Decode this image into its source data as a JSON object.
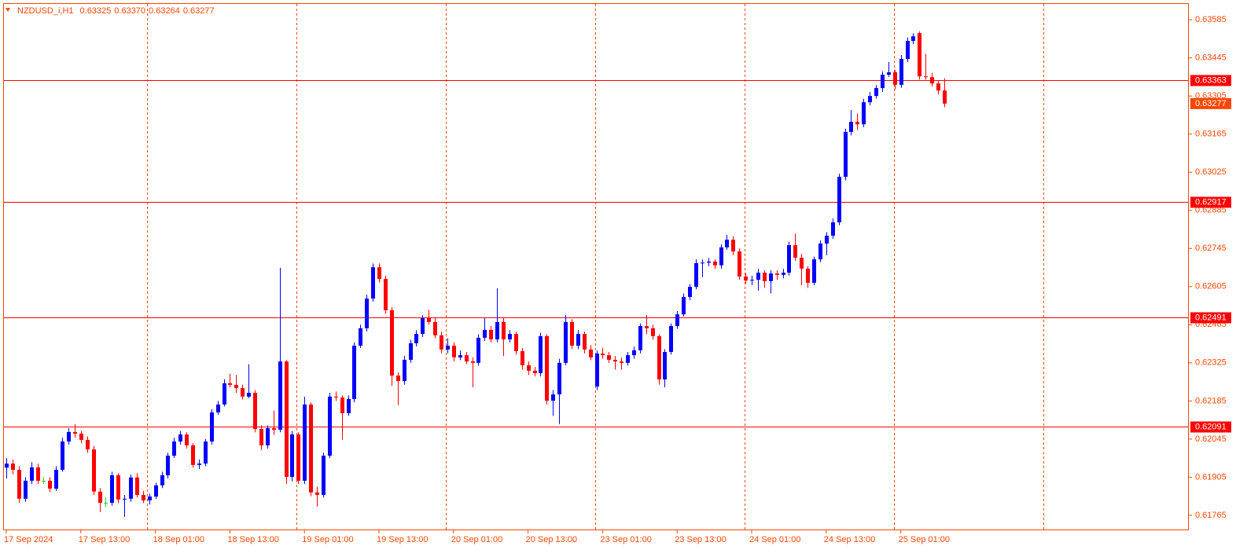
{
  "chart_data": {
    "type": "candlestick",
    "header": {
      "symbol": "NZDUSD_i,H1",
      "values": [
        "0.63325",
        "0.63370",
        "0.63264",
        "0.63277"
      ]
    },
    "up_color": "#0000ff",
    "down_color": "#ff0000",
    "doji_color": "#32cd32",
    "axis_color": "#ff4500",
    "level_color": "#ff0000",
    "levels": [
      0.63363,
      0.62917,
      0.62491,
      0.62091
    ],
    "ylim": [
      0.6171,
      0.63643
    ],
    "yticks": [
      0.63585,
      0.63445,
      0.63305,
      0.63165,
      0.63025,
      0.62885,
      0.62745,
      0.62605,
      0.62465,
      0.62325,
      0.62185,
      0.62045,
      0.61905,
      0.61765
    ],
    "xticks": [
      {
        "value": 0,
        "label": "17 Sep 2024"
      },
      {
        "value": 12,
        "label": "17 Sep 13:00"
      },
      {
        "value": 24,
        "label": "18 Sep 01:00"
      },
      {
        "value": 36,
        "label": "18 Sep 13:00"
      },
      {
        "value": 48,
        "label": "19 Sep 01:00"
      },
      {
        "value": 60,
        "label": "19 Sep 13:00"
      },
      {
        "value": 72,
        "label": "20 Sep 01:00"
      },
      {
        "value": 84,
        "label": "20 Sep 13:00"
      },
      {
        "value": 96,
        "label": "23 Sep 01:00"
      },
      {
        "value": 108,
        "label": "23 Sep 13:00"
      },
      {
        "value": 120,
        "label": "24 Sep 01:00"
      },
      {
        "value": 132,
        "label": "24 Sep 13:00"
      },
      {
        "value": 144,
        "label": "25 Sep 01:00"
      }
    ],
    "open": [
      0.6194,
      0.61955,
      0.61932,
      0.61826,
      0.61892,
      0.61941,
      0.61892,
      0.61892,
      0.61863,
      0.61932,
      0.62036,
      0.62071,
      0.62065,
      0.62042,
      0.62007,
      0.61852,
      0.61811,
      0.61811,
      0.61912,
      0.61823,
      0.61826,
      0.61904,
      0.6184,
      0.6182,
      0.61834,
      0.61875,
      0.61912,
      0.61984,
      0.62036,
      0.62062,
      0.62022,
      0.6195,
      0.61955,
      0.62036,
      0.62143,
      0.62172,
      0.6225,
      0.62244,
      0.62232,
      0.62201,
      0.62215,
      0.62082,
      0.62022,
      0.62085,
      0.62079,
      0.6233,
      0.61906,
      0.62062,
      0.61892,
      0.62172,
      0.61849,
      0.6184,
      0.61984,
      0.62201,
      0.62198,
      0.6214,
      0.62192,
      0.62388,
      0.62452,
      0.62561,
      0.62676,
      0.62633,
      0.62518,
      0.62278,
      0.62258,
      0.62336,
      0.62397,
      0.62431,
      0.62489,
      0.62475,
      0.62426,
      0.62374,
      0.62388,
      0.62345,
      0.62353,
      0.6233,
      0.62325,
      0.62417,
      0.62446,
      0.62411,
      0.62475,
      0.62411,
      0.62431,
      0.62368,
      0.62316,
      0.62296,
      0.62287,
      0.62423,
      0.62186,
      0.62209,
      0.62325,
      0.62475,
      0.62388,
      0.62431,
      0.62374,
      0.62238,
      0.62359,
      0.62353,
      0.62336,
      0.6233,
      0.62325,
      0.62353,
      0.62371,
      0.6246,
      0.62452,
      0.62423,
      0.62264,
      0.62365,
      0.6246,
      0.62503,
      0.62567,
      0.62604,
      0.62691,
      0.62693,
      0.62697,
      0.62683,
      0.62749,
      0.62777,
      0.62734,
      0.62642,
      0.62627,
      0.6263,
      0.62656,
      0.62625,
      0.62653,
      0.62648,
      0.62656,
      0.62757,
      0.62711,
      0.62671,
      0.62619,
      0.62705,
      0.62763,
      0.62792,
      0.62841,
      0.63008,
      0.63173,
      0.6321,
      0.63201,
      0.63282,
      0.63305,
      0.63334,
      0.63383,
      0.63392,
      0.63346,
      0.63441,
      0.63507,
      0.63536,
      0.63377,
      0.63374,
      0.63351,
      0.63325
    ],
    "high": [
      0.61975,
      0.6197,
      0.61945,
      0.61905,
      0.6196,
      0.61955,
      0.61905,
      0.61905,
      0.61945,
      0.6205,
      0.62085,
      0.621,
      0.62075,
      0.62055,
      0.6202,
      0.61865,
      0.6183,
      0.61925,
      0.6192,
      0.6184,
      0.61915,
      0.6192,
      0.61855,
      0.61845,
      0.61885,
      0.61925,
      0.61995,
      0.6205,
      0.62075,
      0.6207,
      0.6203,
      0.6197,
      0.62045,
      0.62155,
      0.62185,
      0.62265,
      0.62285,
      0.6228,
      0.62245,
      0.6232,
      0.62225,
      0.62095,
      0.62095,
      0.6215,
      0.62674,
      0.62335,
      0.62075,
      0.6207,
      0.622,
      0.6218,
      0.6187,
      0.61995,
      0.62215,
      0.6222,
      0.62205,
      0.62205,
      0.624,
      0.62465,
      0.62575,
      0.6269,
      0.6269,
      0.62645,
      0.6253,
      0.6229,
      0.6235,
      0.6241,
      0.62445,
      0.625,
      0.6252,
      0.6249,
      0.6244,
      0.62415,
      0.624,
      0.6237,
      0.62365,
      0.62345,
      0.6243,
      0.6249,
      0.6246,
      0.62599,
      0.6249,
      0.62445,
      0.6244,
      0.6238,
      0.6233,
      0.6231,
      0.62435,
      0.6243,
      0.62225,
      0.6234,
      0.625,
      0.62485,
      0.62445,
      0.6244,
      0.6239,
      0.6237,
      0.6238,
      0.62365,
      0.6235,
      0.62345,
      0.62365,
      0.62385,
      0.6247,
      0.625,
      0.62465,
      0.6243,
      0.62375,
      0.6247,
      0.62515,
      0.6258,
      0.62615,
      0.62705,
      0.62705,
      0.6271,
      0.62705,
      0.6276,
      0.62795,
      0.6279,
      0.62745,
      0.62655,
      0.62645,
      0.6267,
      0.62665,
      0.62665,
      0.62665,
      0.6267,
      0.6277,
      0.628,
      0.62725,
      0.6268,
      0.62715,
      0.62775,
      0.62805,
      0.62855,
      0.6302,
      0.63185,
      0.63253,
      0.6324,
      0.63295,
      0.6332,
      0.63345,
      0.63395,
      0.6343,
      0.634,
      0.63455,
      0.6352,
      0.63535,
      0.63542,
      0.6346,
      0.6339,
      0.6336,
      0.6337
    ],
    "low": [
      0.619,
      0.61915,
      0.6181,
      0.61815,
      0.6188,
      0.6188,
      0.6188,
      0.6185,
      0.61855,
      0.61925,
      0.62025,
      0.6205,
      0.6203,
      0.61995,
      0.6184,
      0.61777,
      0.61795,
      0.618,
      0.6181,
      0.61759,
      0.61815,
      0.6183,
      0.6181,
      0.61805,
      0.61825,
      0.61865,
      0.619,
      0.61975,
      0.62025,
      0.6201,
      0.6194,
      0.61935,
      0.61945,
      0.62025,
      0.62135,
      0.62165,
      0.62235,
      0.62215,
      0.6219,
      0.62195,
      0.6207,
      0.62005,
      0.6201,
      0.6206,
      0.6207,
      0.6188,
      0.6189,
      0.6188,
      0.6188,
      0.61835,
      0.61797,
      0.6183,
      0.61975,
      0.62185,
      0.62042,
      0.6213,
      0.6218,
      0.6238,
      0.6244,
      0.6255,
      0.6262,
      0.62505,
      0.6224,
      0.6217,
      0.62245,
      0.62325,
      0.62385,
      0.6242,
      0.62465,
      0.62415,
      0.6236,
      0.6236,
      0.6233,
      0.62335,
      0.6232,
      0.62235,
      0.62315,
      0.62405,
      0.624,
      0.624,
      0.6235,
      0.624,
      0.62355,
      0.623,
      0.6228,
      0.62275,
      0.62275,
      0.62172,
      0.6213,
      0.621,
      0.62315,
      0.62375,
      0.62375,
      0.6236,
      0.62335,
      0.62225,
      0.6234,
      0.62325,
      0.623,
      0.623,
      0.62315,
      0.6234,
      0.6236,
      0.6243,
      0.6241,
      0.62245,
      0.62235,
      0.62355,
      0.6245,
      0.62495,
      0.62555,
      0.62595,
      0.6264,
      0.6268,
      0.6267,
      0.6267,
      0.6274,
      0.6272,
      0.6263,
      0.62615,
      0.6261,
      0.6259,
      0.626,
      0.6258,
      0.6263,
      0.62635,
      0.62645,
      0.627,
      0.6261,
      0.626,
      0.6261,
      0.62695,
      0.6272,
      0.6278,
      0.6283,
      0.62995,
      0.6316,
      0.6318,
      0.6319,
      0.6327,
      0.63295,
      0.6332,
      0.63375,
      0.6333,
      0.63335,
      0.6343,
      0.63495,
      0.63365,
      0.63365,
      0.6334,
      0.6331,
      0.63264
    ],
    "close": [
      0.61955,
      0.61932,
      0.61826,
      0.61892,
      0.61941,
      0.61892,
      0.61892,
      0.61863,
      0.61932,
      0.62036,
      0.62071,
      0.62065,
      0.62042,
      0.62007,
      0.61852,
      0.61811,
      0.61811,
      0.61912,
      0.61823,
      0.61826,
      0.61904,
      0.6184,
      0.6182,
      0.61834,
      0.61875,
      0.61912,
      0.61984,
      0.62036,
      0.62062,
      0.62022,
      0.6195,
      0.61955,
      0.62036,
      0.62143,
      0.62172,
      0.6225,
      0.62244,
      0.62232,
      0.62201,
      0.62215,
      0.62082,
      0.62022,
      0.62085,
      0.62079,
      0.6233,
      0.61906,
      0.62062,
      0.61892,
      0.62172,
      0.61849,
      0.6184,
      0.61984,
      0.62201,
      0.62198,
      0.6214,
      0.62192,
      0.62388,
      0.62452,
      0.62561,
      0.62676,
      0.62633,
      0.62518,
      0.62278,
      0.62258,
      0.62336,
      0.62397,
      0.62431,
      0.62489,
      0.62475,
      0.62426,
      0.62374,
      0.62388,
      0.62345,
      0.62353,
      0.6233,
      0.62325,
      0.62417,
      0.62446,
      0.62411,
      0.62475,
      0.62411,
      0.62431,
      0.62368,
      0.62316,
      0.62296,
      0.62287,
      0.62423,
      0.62186,
      0.62209,
      0.62325,
      0.62475,
      0.62388,
      0.62431,
      0.62374,
      0.62345,
      0.62359,
      0.62353,
      0.62336,
      0.6233,
      0.62325,
      0.62353,
      0.62371,
      0.6246,
      0.62452,
      0.62423,
      0.62264,
      0.62365,
      0.6246,
      0.62503,
      0.62567,
      0.62604,
      0.62691,
      0.62693,
      0.62697,
      0.62683,
      0.62749,
      0.62777,
      0.62734,
      0.62642,
      0.62627,
      0.6263,
      0.62656,
      0.62625,
      0.62653,
      0.62648,
      0.62656,
      0.62757,
      0.62711,
      0.62671,
      0.62619,
      0.62705,
      0.62763,
      0.62792,
      0.62841,
      0.63008,
      0.63173,
      0.6321,
      0.63201,
      0.63282,
      0.63305,
      0.63334,
      0.63383,
      0.63392,
      0.63346,
      0.63441,
      0.63507,
      0.63524,
      0.63377,
      0.63374,
      0.63351,
      0.63325,
      0.63277
    ]
  }
}
